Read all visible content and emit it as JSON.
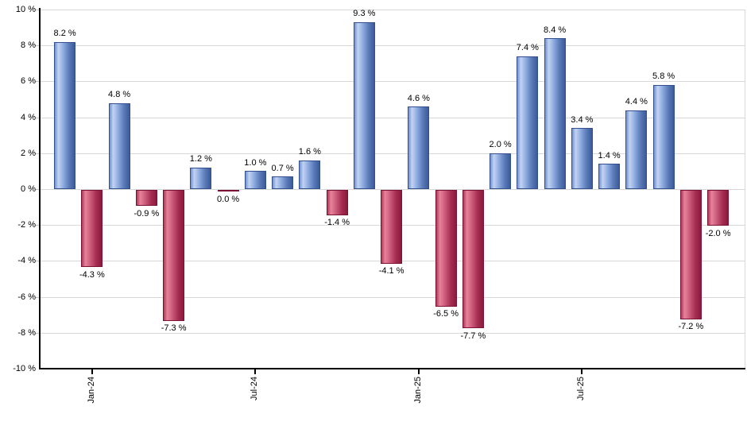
{
  "chart_data": {
    "type": "bar",
    "title": "",
    "xlabel": "",
    "ylabel": "",
    "ylim": [
      -10,
      10
    ],
    "grid": true,
    "legend": false,
    "value_suffix": " %",
    "bars": [
      {
        "value": 8.2,
        "label": "8.2 %"
      },
      {
        "value": -4.3,
        "label": "-4.3 %"
      },
      {
        "value": 4.8,
        "label": "4.8 %"
      },
      {
        "value": -0.9,
        "label": "-0.9 %"
      },
      {
        "value": -7.3,
        "label": "-7.3 %"
      },
      {
        "value": 1.2,
        "label": "1.2 %"
      },
      {
        "value": 0.0,
        "label": "0.0 %"
      },
      {
        "value": 1.0,
        "label": "1.0 %"
      },
      {
        "value": 0.7,
        "label": "0.7 %"
      },
      {
        "value": 1.6,
        "label": "1.6 %"
      },
      {
        "value": -1.4,
        "label": "-1.4 %"
      },
      {
        "value": 9.3,
        "label": "9.3 %"
      },
      {
        "value": -4.1,
        "label": "-4.1 %"
      },
      {
        "value": 4.6,
        "label": "4.6 %"
      },
      {
        "value": -6.5,
        "label": "-6.5 %"
      },
      {
        "value": -7.7,
        "label": "-7.7 %"
      },
      {
        "value": 2.0,
        "label": "2.0 %"
      },
      {
        "value": 7.4,
        "label": "7.4 %"
      },
      {
        "value": 8.4,
        "label": "8.4 %"
      },
      {
        "value": 3.4,
        "label": "3.4 %"
      },
      {
        "value": 1.4,
        "label": "1.4 %"
      },
      {
        "value": 4.4,
        "label": "4.4 %"
      },
      {
        "value": 5.8,
        "label": "5.8 %"
      },
      {
        "value": -7.2,
        "label": "-7.2 %"
      },
      {
        "value": -2.0,
        "label": "-2.0 %"
      }
    ],
    "y_ticks": [
      {
        "value": 10,
        "label": "10 %"
      },
      {
        "value": 8,
        "label": "8 %"
      },
      {
        "value": 6,
        "label": "6 %"
      },
      {
        "value": 4,
        "label": "4 %"
      },
      {
        "value": 2,
        "label": "2 %"
      },
      {
        "value": 0,
        "label": "0 %"
      },
      {
        "value": -2,
        "label": "-2 %"
      },
      {
        "value": -4,
        "label": "-4 %"
      },
      {
        "value": -6,
        "label": "-6 %"
      },
      {
        "value": -8,
        "label": "-8 %"
      },
      {
        "value": -10,
        "label": "-10 %"
      }
    ],
    "x_ticks": [
      {
        "bar_index": 1,
        "label": "Jan-24"
      },
      {
        "bar_index": 7,
        "label": "Jul-24"
      },
      {
        "bar_index": 13,
        "label": "Jan-25"
      },
      {
        "bar_index": 19,
        "label": "Jul-25"
      }
    ],
    "colors": {
      "positive_gradient": [
        "#7191cf",
        "#c3d3f2",
        "#93b0e3",
        "#5a7ab8",
        "#3a5a9a"
      ],
      "positive_border": "#32508e",
      "negative_gradient": [
        "#aa3a59",
        "#e8829a",
        "#cf6080",
        "#a52e52",
        "#8c1a3e"
      ],
      "negative_border": "#7c1133",
      "grid": "#d8d8d8",
      "axis": "#000000",
      "text": "#000000",
      "background": "#ffffff"
    }
  }
}
